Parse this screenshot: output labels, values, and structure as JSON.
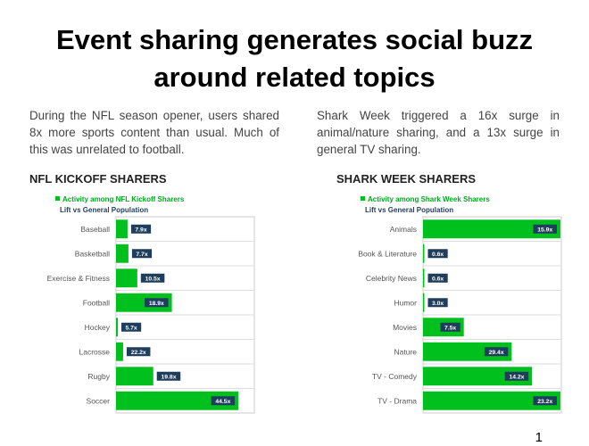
{
  "title_line1": "Event sharing generates social buzz",
  "title_line2": "around related topics",
  "left_paragraph": "During the NFL season opener, users shared 8x more sports content than usual. Much of this was unrelated to football.",
  "right_paragraph": "Shark Week triggered a 16x surge in animal/nature sharing, and a 13x surge in general TV sharing.",
  "left_heading": "NFL KICKOFF SHARERS",
  "right_heading": "SHARK WEEK SHARERS",
  "page_number": "1",
  "colors": {
    "bar": "#00c01e",
    "label_bg": "#1f3d5c",
    "legend_text": "#00a81e",
    "subtitle": "#1f3d5c"
  },
  "chart_data": [
    {
      "type": "bar",
      "orientation": "horizontal",
      "legend": "Activity among NFL Kickoff Sharers",
      "subtitle": "Lift vs General Population",
      "categories": [
        "Baseball",
        "Basketball",
        "Exercise & Fitness",
        "Football",
        "Hockey",
        "Lacrosse",
        "Rugby",
        "Soccer"
      ],
      "values": [
        1.3,
        1.4,
        2.4,
        6.3,
        0.2,
        0.8,
        4.2,
        13.8
      ],
      "labels": [
        "7.9x",
        "7.7x",
        "10.5x",
        "18.9x",
        "5.7x",
        "22.2x",
        "19.8x",
        "44.5x"
      ]
    },
    {
      "type": "bar",
      "orientation": "horizontal",
      "legend": "Activity among Shark Week Sharers",
      "subtitle": "Lift vs General Population",
      "categories": [
        "Animals",
        "Book & Literature",
        "Celebrity News",
        "Humor",
        "Movies",
        "Nature",
        "TV - Comedy",
        "TV - Drama"
      ],
      "values": [
        15.5,
        0.15,
        0.15,
        0.15,
        4.6,
        10.0,
        12.3,
        15.5
      ],
      "labels": [
        "15.9x",
        "0.6x",
        "0.6x",
        "3.0x",
        "7.5x",
        "29.4x",
        "14.2x",
        "23.2x"
      ]
    }
  ]
}
